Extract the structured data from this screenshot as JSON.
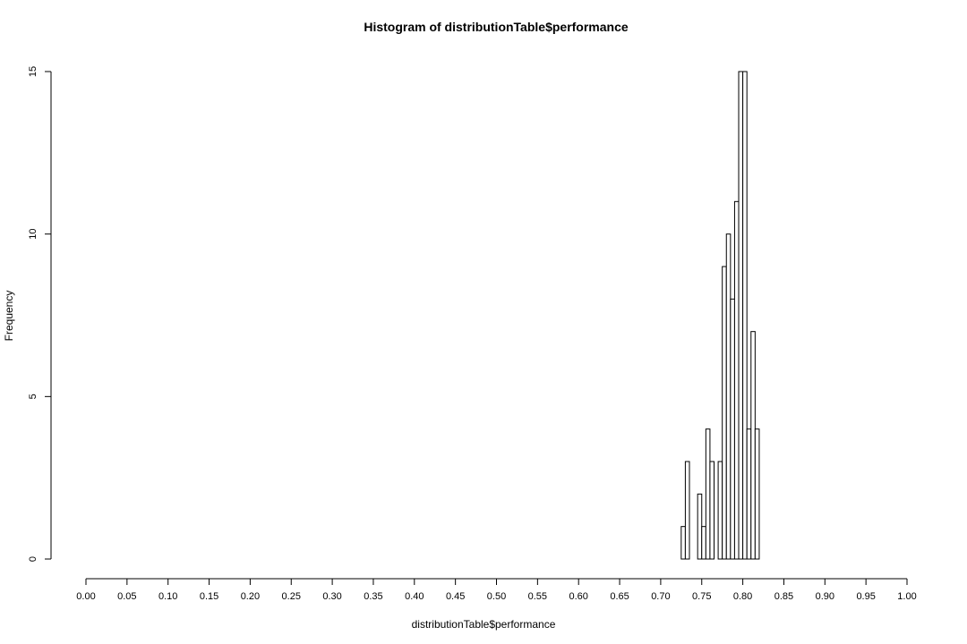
{
  "chart_data": {
    "type": "bar",
    "title": "Histogram of distributionTable$performance",
    "xlabel": "distributionTable$performance",
    "ylabel": "Frequency",
    "xlim": [
      0,
      1
    ],
    "ylim": [
      0,
      15
    ],
    "x_ticks": [
      "0.00",
      "0.05",
      "0.10",
      "0.15",
      "0.20",
      "0.25",
      "0.30",
      "0.35",
      "0.40",
      "0.45",
      "0.50",
      "0.55",
      "0.60",
      "0.65",
      "0.70",
      "0.75",
      "0.80",
      "0.85",
      "0.90",
      "0.95",
      "1.00"
    ],
    "y_ticks": [
      "0",
      "5",
      "10",
      "15"
    ],
    "bin_width": 0.005,
    "bins": [
      {
        "start": 0.725,
        "count": 1
      },
      {
        "start": 0.73,
        "count": 3
      },
      {
        "start": 0.735,
        "count": 0
      },
      {
        "start": 0.74,
        "count": 0
      },
      {
        "start": 0.745,
        "count": 2
      },
      {
        "start": 0.75,
        "count": 1
      },
      {
        "start": 0.755,
        "count": 4
      },
      {
        "start": 0.76,
        "count": 3
      },
      {
        "start": 0.765,
        "count": 0
      },
      {
        "start": 0.77,
        "count": 3
      },
      {
        "start": 0.775,
        "count": 9
      },
      {
        "start": 0.78,
        "count": 10
      },
      {
        "start": 0.785,
        "count": 8
      },
      {
        "start": 0.79,
        "count": 11
      },
      {
        "start": 0.795,
        "count": 15
      },
      {
        "start": 0.8,
        "count": 15
      },
      {
        "start": 0.805,
        "count": 4
      },
      {
        "start": 0.81,
        "count": 7
      },
      {
        "start": 0.815,
        "count": 4
      }
    ]
  }
}
